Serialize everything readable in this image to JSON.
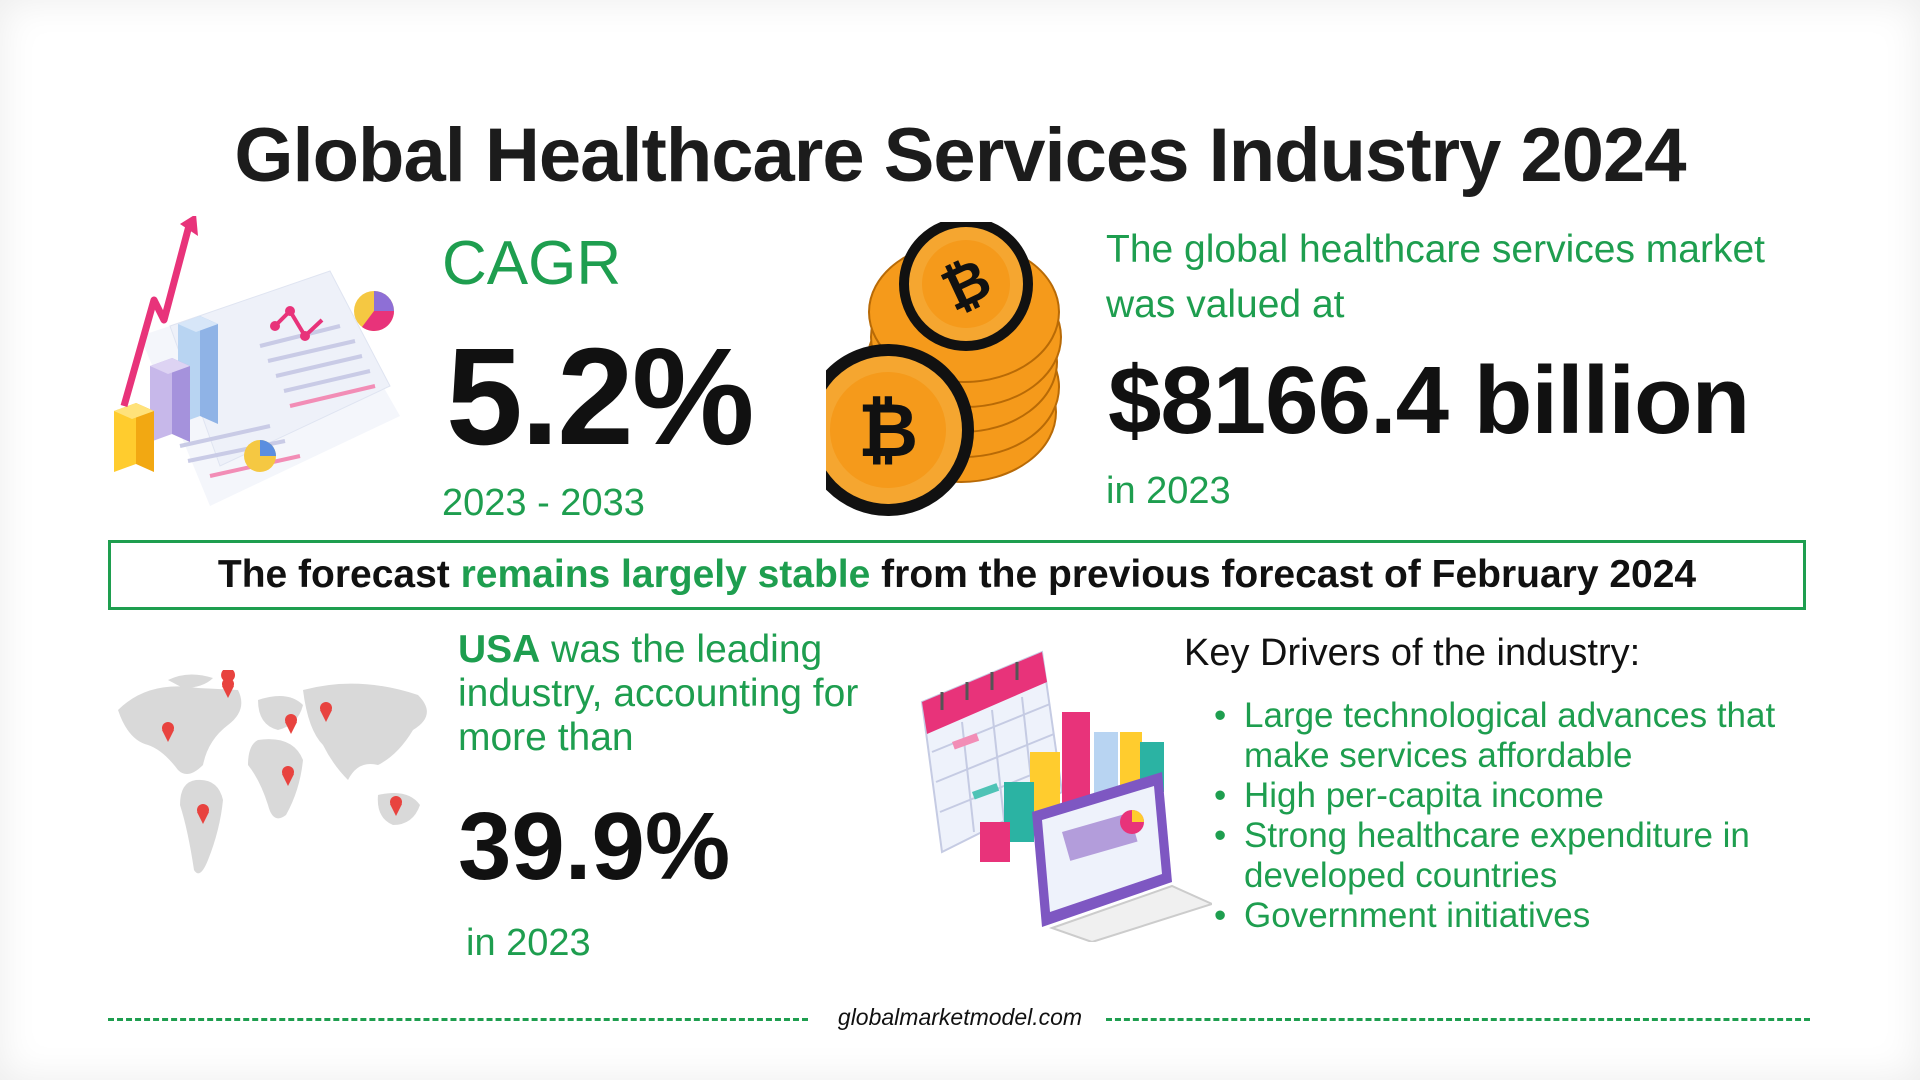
{
  "title": "Global Healthcare Services Industry 2024",
  "cagr": {
    "label": "CAGR",
    "value": "5.2%",
    "period": "2023 - 2033"
  },
  "market": {
    "intro": "The global healthcare services market was valued at",
    "value": "$8166.4 billion",
    "year": "in 2023"
  },
  "banner": {
    "part1": "The forecast ",
    "highlight": "remains largely stable",
    "part2": " from the previous forecast of February 2024"
  },
  "usa": {
    "country": "USA",
    "text": " was the leading industry, accounting for more than",
    "value": "39.9%",
    "year": "in 2023"
  },
  "drivers": {
    "title": "Key Drivers of the industry:",
    "items": [
      "Large technological advances that make services affordable",
      "High per-capita income",
      "Strong healthcare expenditure in developed countries",
      "Government initiatives"
    ]
  },
  "footer": {
    "site": "globalmarketmodel.com"
  },
  "colors": {
    "accent": "#1e9e4f",
    "text": "#111111",
    "pink": "#e8337a",
    "orange": "#f59a1b"
  },
  "icons": [
    "growth-chart-illustration",
    "bitcoin-coins-icon",
    "world-map-icon",
    "calendar-analytics-illustration"
  ]
}
